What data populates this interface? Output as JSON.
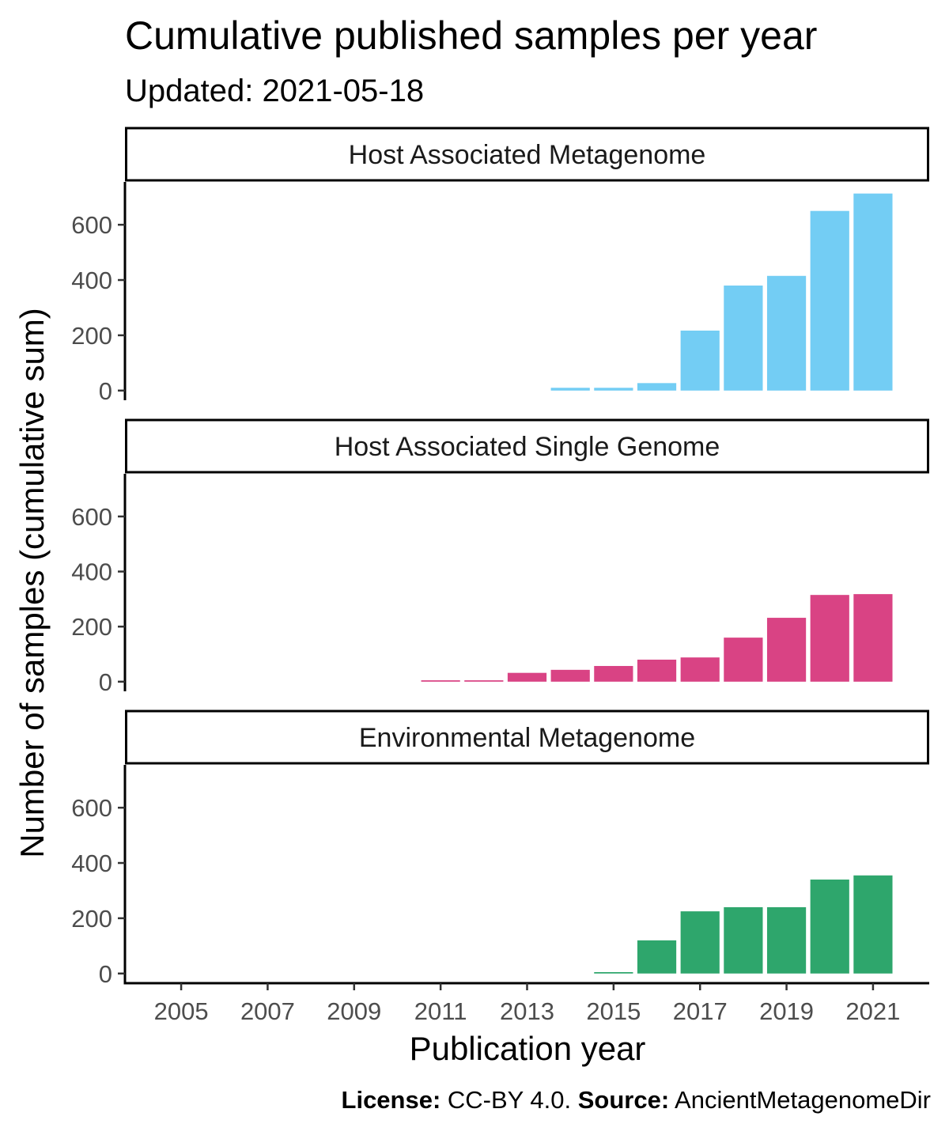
{
  "title": "Cumulative published samples per year",
  "subtitle": "Updated: 2021-05-18",
  "caption": {
    "license_label": "License:",
    "license_value": " CC-BY 4.0. ",
    "source_label": "Source:",
    "source_value": " AncientMetagenomeDir"
  },
  "chart_data": {
    "type": "bar",
    "title": "Cumulative published samples per year",
    "subtitle": "Updated: 2021-05-18",
    "xlabel": "Publication year",
    "ylabel": "Number of samples (cumulative sum)",
    "x_ticks": [
      2005,
      2007,
      2009,
      2011,
      2013,
      2015,
      2017,
      2019,
      2021
    ],
    "y_ticks": [
      0,
      200,
      400,
      600
    ],
    "xlim": [
      2003.7,
      2022.3
    ],
    "ylim": [
      -35,
      755
    ],
    "grid": false,
    "legend": "none",
    "facets": [
      {
        "name": "Host Associated Metagenome",
        "color": "#73CDF4",
        "x": [
          2014,
          2015,
          2016,
          2017,
          2018,
          2019,
          2020,
          2021
        ],
        "values": [
          10,
          10,
          27,
          217,
          380,
          415,
          650,
          713
        ]
      },
      {
        "name": "Host Associated Single Genome",
        "color": "#D94384",
        "x": [
          2011,
          2012,
          2013,
          2014,
          2015,
          2016,
          2017,
          2018,
          2019,
          2020,
          2021
        ],
        "values": [
          5,
          5,
          32,
          43,
          57,
          80,
          88,
          160,
          232,
          315,
          318
        ]
      },
      {
        "name": "Environmental Metagenome",
        "color": "#2EA66C",
        "x": [
          2015,
          2016,
          2017,
          2018,
          2019,
          2020,
          2021
        ],
        "values": [
          5,
          120,
          225,
          240,
          240,
          340,
          355
        ]
      }
    ]
  }
}
